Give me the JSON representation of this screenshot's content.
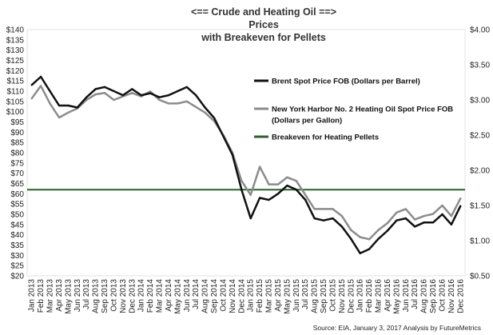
{
  "chart_data": {
    "type": "line",
    "title_lines": [
      "<== Crude and Heating Oil ==>",
      "Prices",
      "with Breakeven for Pellets"
    ],
    "source": "Source: EIA, January 3, 2017 Analysis by FutureMetrics",
    "y_left": {
      "min": 20,
      "max": 140,
      "step": 5,
      "tick_labels": [
        "$20",
        "$25",
        "$30",
        "$35",
        "$40",
        "$45",
        "$50",
        "$55",
        "$60",
        "$65",
        "$70",
        "$75",
        "$80",
        "$85",
        "$90",
        "$95",
        "$100",
        "$105",
        "$110",
        "$115",
        "$120",
        "$125",
        "$130",
        "$135",
        "$140"
      ]
    },
    "y_right": {
      "min": 0.5,
      "max": 4.0,
      "step": 0.5,
      "tick_labels": [
        "$0.50",
        "$1.00",
        "$1.50",
        "$2.00",
        "$2.50",
        "$3.00",
        "$3.50",
        "$4.00"
      ]
    },
    "months": [
      "Jan 2013",
      "Feb 2013",
      "Mar 2013",
      "Apr 2013",
      "May 2013",
      "Jun 2013",
      "Jul 2013",
      "Aug 2013",
      "Sep 2013",
      "Oct 2013",
      "Nov 2013",
      "Dec 2013",
      "Jan 2014",
      "Feb 2014",
      "Mar 2014",
      "Apr 2014",
      "May 2014",
      "Jun 2014",
      "Jul 2014",
      "Aug 2014",
      "Sep 2014",
      "Oct 2014",
      "Nov 2014",
      "Dec 2014",
      "Jan 2015",
      "Feb 2015",
      "Mar 2015",
      "Apr 2015",
      "May 2015",
      "Jun 2015",
      "Jul 2015",
      "Aug 2015",
      "Sep 2015",
      "Oct 2015",
      "Nov 2015",
      "Dec 2015",
      "Jan 2016",
      "Feb 2016",
      "Mar 2016",
      "Apr 2016",
      "May 2016",
      "Jun 2016",
      "Jul 2016",
      "Aug 2016",
      "Sep 2016",
      "Oct 2016",
      "Nov 2016",
      "Dec 2016"
    ],
    "series": [
      {
        "name": "Brent Spot Price FOB (Dollars per Barrel)",
        "axis": "left",
        "color": "#111111",
        "values": [
          113,
          117,
          110,
          103,
          103,
          102,
          107,
          111,
          112,
          110,
          108,
          111,
          108,
          109,
          107,
          108,
          110,
          112,
          108,
          102,
          97,
          88,
          79,
          62,
          48,
          58,
          57,
          60,
          64,
          62,
          57,
          48,
          47,
          48,
          44,
          38,
          31,
          33,
          38,
          42,
          47,
          48,
          44,
          46,
          46,
          50,
          45,
          54
        ]
      },
      {
        "name": "New York Harbor No. 2 Heating Oil Spot Price FOB (Dollars per Gallon)",
        "axis": "right",
        "color": "#8c8c8c",
        "values": [
          3.02,
          3.2,
          2.95,
          2.75,
          2.82,
          2.88,
          3.0,
          3.08,
          3.1,
          3.0,
          3.05,
          3.1,
          3.05,
          3.12,
          3.0,
          2.95,
          2.95,
          2.98,
          2.9,
          2.82,
          2.7,
          2.5,
          2.25,
          1.85,
          1.65,
          2.05,
          1.8,
          1.8,
          1.9,
          1.85,
          1.65,
          1.45,
          1.45,
          1.45,
          1.35,
          1.15,
          1.05,
          1.02,
          1.15,
          1.25,
          1.4,
          1.45,
          1.3,
          1.35,
          1.38,
          1.5,
          1.35,
          1.6
        ]
      }
    ],
    "reference_lines": [
      {
        "name": "Breakeven for Heating Pellets",
        "axis": "left",
        "value": 62,
        "color": "#2e5e2e"
      }
    ],
    "legend": [
      {
        "label_lines": [
          "Brent Spot Price FOB (Dollars per Barrel)"
        ],
        "color": "#111111"
      },
      {
        "label_lines": [
          "New York Harbor No. 2 Heating Oil Spot Price FOB",
          "(Dollars per Gallon)"
        ],
        "color": "#8c8c8c"
      },
      {
        "label_lines": [
          "Breakeven for Heating Pellets"
        ],
        "color": "#2e5e2e"
      }
    ],
    "grid": false
  }
}
